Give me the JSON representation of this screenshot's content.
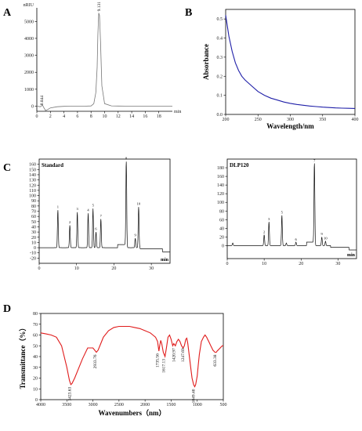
{
  "panels": {
    "A": {
      "label": "A"
    },
    "B": {
      "label": "B"
    },
    "C": {
      "label": "C"
    },
    "D": {
      "label": "D"
    }
  },
  "chart_data": [
    {
      "id": "A",
      "type": "line",
      "ylabel_top": "nRIU",
      "xlabel": "min",
      "xlim": [
        0,
        20
      ],
      "ylim": [
        -300,
        5800
      ],
      "xticks": [
        "0",
        "2",
        "4",
        "6",
        "8",
        "10",
        "12",
        "14",
        "16",
        "18"
      ],
      "yticks": [
        "0",
        "1000",
        "2000",
        "3000",
        "4000",
        "5000"
      ],
      "annotations": [
        {
          "x": 0.9,
          "y": 60,
          "text": "0.844"
        },
        {
          "x": 9.35,
          "y": 5600,
          "text": "9.131"
        }
      ],
      "color": "#777777",
      "x": [
        0,
        0.5,
        0.844,
        1.0,
        1.3,
        1.6,
        2.0,
        3,
        4,
        5,
        6,
        7,
        8,
        8.4,
        8.7,
        8.9,
        9.0,
        9.13,
        9.25,
        9.4,
        9.6,
        10.0,
        11,
        12,
        13,
        14,
        15,
        16,
        17,
        18,
        19,
        20
      ],
      "y": [
        0,
        -30,
        60,
        -60,
        -260,
        -200,
        -100,
        -30,
        -10,
        -5,
        0,
        0,
        15,
        150,
        800,
        2300,
        4200,
        5500,
        5350,
        3800,
        1200,
        150,
        20,
        10,
        5,
        5,
        5,
        5,
        5,
        5,
        5,
        5
      ]
    },
    {
      "id": "B",
      "type": "line",
      "xlabel": "Wavelength/nm",
      "ylabel": "Absorbance",
      "xlim": [
        200,
        400
      ],
      "ylim": [
        0.0,
        0.55
      ],
      "xticks": [
        "200",
        "250",
        "300",
        "350",
        "400"
      ],
      "yticks": [
        "0.0",
        "0.1",
        "0.2",
        "0.3",
        "0.4",
        "0.5"
      ],
      "color": "#1f1fa8",
      "x": [
        200,
        205,
        210,
        215,
        220,
        225,
        230,
        240,
        250,
        260,
        270,
        280,
        290,
        300,
        310,
        320,
        330,
        340,
        350,
        360,
        370,
        380,
        390,
        400
      ],
      "y": [
        0.52,
        0.41,
        0.33,
        0.27,
        0.23,
        0.2,
        0.18,
        0.15,
        0.12,
        0.1,
        0.085,
        0.075,
        0.065,
        0.058,
        0.052,
        0.048,
        0.044,
        0.041,
        0.038,
        0.036,
        0.034,
        0.033,
        0.032,
        0.031
      ]
    },
    {
      "id": "C1",
      "type": "line",
      "title": "Standard",
      "xlabel": "min",
      "xlim": [
        0,
        35
      ],
      "ylim": [
        -30,
        170
      ],
      "xticks": [
        "0",
        "10",
        "20",
        "30"
      ],
      "yticks": [
        "-20",
        "-10",
        "0",
        "10",
        "20",
        "30",
        "40",
        "50",
        "60",
        "70",
        "80",
        "90",
        "100",
        "110",
        "120",
        "130",
        "140",
        "150",
        "160"
      ],
      "color": "#111111",
      "peaks": [
        {
          "t": 5.0,
          "h": 72
        },
        {
          "t": 8.2,
          "h": 43
        },
        {
          "t": 10.2,
          "h": 68
        },
        {
          "t": 13.1,
          "h": 66
        },
        {
          "t": 14.4,
          "h": 75
        },
        {
          "t": 15.2,
          "h": 30
        },
        {
          "t": 16.5,
          "h": 55
        },
        {
          "t": 23.3,
          "h": 165
        },
        {
          "t": 25.7,
          "h": 18
        },
        {
          "t": 26.6,
          "h": 78
        }
      ],
      "annotations": [
        "1",
        "2",
        "3",
        "4",
        "5",
        "6",
        "7",
        "8",
        "9",
        "10"
      ]
    },
    {
      "id": "C2",
      "type": "line",
      "title": "DLP120",
      "xlabel": "min",
      "xlim": [
        0,
        35
      ],
      "ylim": [
        -30,
        200
      ],
      "xticks": [
        "0",
        "10",
        "20",
        "30"
      ],
      "yticks": [
        "0",
        "20",
        "40",
        "60",
        "80",
        "100",
        "120",
        "140",
        "160",
        "180"
      ],
      "color": "#111111",
      "peaks": [
        {
          "t": 1.5,
          "h": 6
        },
        {
          "t": 10.0,
          "h": 25
        },
        {
          "t": 11.3,
          "h": 55
        },
        {
          "t": 14.8,
          "h": 70
        },
        {
          "t": 16.0,
          "h": 6
        },
        {
          "t": 18.6,
          "h": 8
        },
        {
          "t": 23.6,
          "h": 190
        },
        {
          "t": 25.6,
          "h": 20
        },
        {
          "t": 26.6,
          "h": 10
        }
      ],
      "annotations": [
        "2",
        "3",
        "5",
        "6",
        "7",
        "9",
        "10"
      ]
    },
    {
      "id": "D",
      "type": "line",
      "xlabel": "Wavenumbers（nm）",
      "ylabel": "Transmittance（%）",
      "xlim": [
        4000,
        500
      ],
      "ylim": [
        0,
        80
      ],
      "xticks": [
        "4000",
        "3500",
        "3000",
        "2500",
        "2000",
        "1500",
        "1000",
        "500"
      ],
      "yticks": [
        "0",
        "10",
        "20",
        "30",
        "40",
        "50",
        "60",
        "70",
        "80"
      ],
      "color": "#e01b1b",
      "annotations": [
        {
          "x": 3423.63,
          "y": 14,
          "text": "3423.63"
        },
        {
          "x": 2933.76,
          "y": 44,
          "text": "2933.76"
        },
        {
          "x": 1735.56,
          "y": 45,
          "text": "1735.56"
        },
        {
          "x": 1617.13,
          "y": 40,
          "text": "1617.13"
        },
        {
          "x": 1420.97,
          "y": 50,
          "text": "1420.97"
        },
        {
          "x": 1247.69,
          "y": 50,
          "text": "1247.69"
        },
        {
          "x": 1049.4,
          "y": 12,
          "text": "1049.40"
        },
        {
          "x": 633.38,
          "y": 44,
          "text": "633.38"
        }
      ],
      "x": [
        4000,
        3900,
        3800,
        3700,
        3600,
        3500,
        3450,
        3423,
        3400,
        3350,
        3300,
        3200,
        3100,
        3000,
        2950,
        2933,
        2900,
        2850,
        2800,
        2700,
        2600,
        2500,
        2400,
        2300,
        2200,
        2100,
        2000,
        1900,
        1850,
        1800,
        1760,
        1735,
        1720,
        1700,
        1680,
        1650,
        1617,
        1590,
        1560,
        1530,
        1500,
        1470,
        1450,
        1420,
        1390,
        1360,
        1330,
        1300,
        1270,
        1247,
        1220,
        1200,
        1180,
        1150,
        1120,
        1100,
        1070,
        1049,
        1030,
        1000,
        980,
        960,
        940,
        920,
        900,
        880,
        850,
        820,
        800,
        780,
        760,
        740,
        720,
        700,
        680,
        660,
        633,
        620,
        600,
        580,
        560,
        540,
        520,
        500
      ],
      "y": [
        62,
        61,
        60,
        58,
        50,
        30,
        18,
        14,
        15,
        20,
        26,
        38,
        48,
        48,
        45,
        44,
        46,
        52,
        58,
        64,
        67,
        68,
        68,
        68,
        67,
        66,
        64,
        62,
        60,
        58,
        54,
        45,
        50,
        55,
        52,
        44,
        40,
        48,
        58,
        60,
        56,
        50,
        52,
        50,
        54,
        56,
        54,
        50,
        48,
        50,
        56,
        57,
        52,
        40,
        28,
        20,
        14,
        12,
        14,
        22,
        32,
        42,
        48,
        54,
        56,
        58,
        60,
        58,
        56,
        54,
        52,
        50,
        48,
        46,
        45,
        44,
        44,
        45,
        46,
        47,
        48,
        49,
        50,
        50
      ]
    }
  ]
}
